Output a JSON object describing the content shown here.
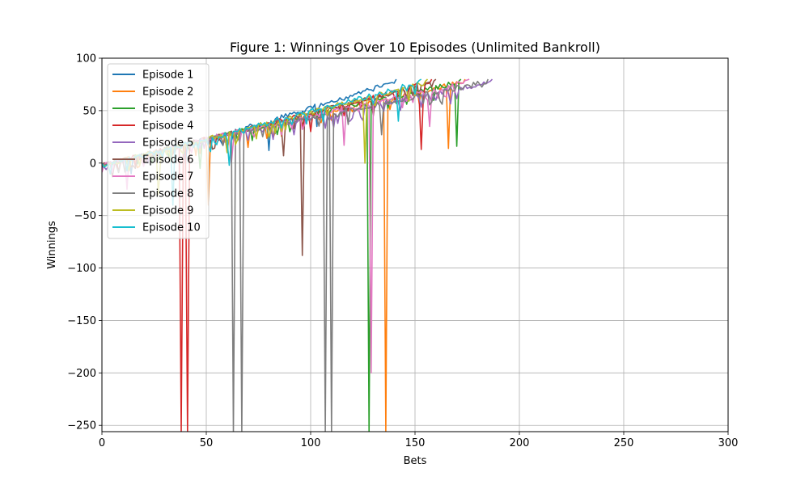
{
  "chart_data": {
    "type": "line",
    "title": "Figure 1: Winnings Over 10 Episodes (Unlimited Bankroll)",
    "xlabel": "Bets",
    "ylabel": "Winnings",
    "xlim": [
      0,
      300
    ],
    "ylim": [
      -256,
      100
    ],
    "xticks": [
      0,
      50,
      100,
      150,
      200,
      250,
      300
    ],
    "yticks": [
      -250,
      -200,
      -150,
      -100,
      -50,
      0,
      50,
      100
    ],
    "grid": true,
    "legend_position": "top-left",
    "series": [
      {
        "name": "Episode 1",
        "color": "#1f77b4",
        "end_x": 141,
        "dips": [
          [
            14,
            -10
          ],
          [
            40,
            0
          ],
          [
            80,
            12
          ],
          [
            103,
            35
          ]
        ]
      },
      {
        "name": "Episode 2",
        "color": "#ff7f0e",
        "end_x": 174,
        "dips": [
          [
            51,
            -40
          ],
          [
            70,
            15
          ],
          [
            136,
            -256
          ],
          [
            166,
            14
          ]
        ]
      },
      {
        "name": "Episode 3",
        "color": "#2ca02c",
        "end_x": 172,
        "dips": [
          [
            47,
            -5
          ],
          [
            90,
            30
          ],
          [
            128,
            -256
          ],
          [
            170,
            16
          ]
        ]
      },
      {
        "name": "Episode 4",
        "color": "#d62728",
        "end_x": 158,
        "dips": [
          [
            38,
            -256
          ],
          [
            41,
            -256
          ],
          [
            100,
            30
          ],
          [
            153,
            13
          ]
        ]
      },
      {
        "name": "Episode 5",
        "color": "#9467bd",
        "end_x": 187,
        "dips": [
          [
            22,
            0
          ],
          [
            92,
            27
          ],
          [
            160,
            60
          ]
        ]
      },
      {
        "name": "Episode 6",
        "color": "#8c564b",
        "end_x": 160,
        "dips": [
          [
            60,
            10
          ],
          [
            87,
            7
          ],
          [
            96,
            -88
          ],
          [
            130,
            45
          ]
        ]
      },
      {
        "name": "Episode 7",
        "color": "#e377c2",
        "end_x": 176,
        "dips": [
          [
            12,
            -25
          ],
          [
            62,
            0
          ],
          [
            116,
            17
          ],
          [
            129,
            -200
          ],
          [
            157,
            35
          ]
        ]
      },
      {
        "name": "Episode 8",
        "color": "#7f7f7f",
        "end_x": 185,
        "dips": [
          [
            63,
            -256
          ],
          [
            67,
            -256
          ],
          [
            107,
            -256
          ],
          [
            110,
            -256
          ],
          [
            134,
            27
          ]
        ]
      },
      {
        "name": "Episode 9",
        "color": "#bcbd22",
        "end_x": 156,
        "dips": [
          [
            27,
            -30
          ],
          [
            60,
            10
          ],
          [
            126,
            0
          ]
        ]
      },
      {
        "name": "Episode 10",
        "color": "#17becf",
        "end_x": 153,
        "dips": [
          [
            34,
            -40
          ],
          [
            61,
            -2
          ],
          [
            142,
            40
          ]
        ]
      }
    ]
  }
}
